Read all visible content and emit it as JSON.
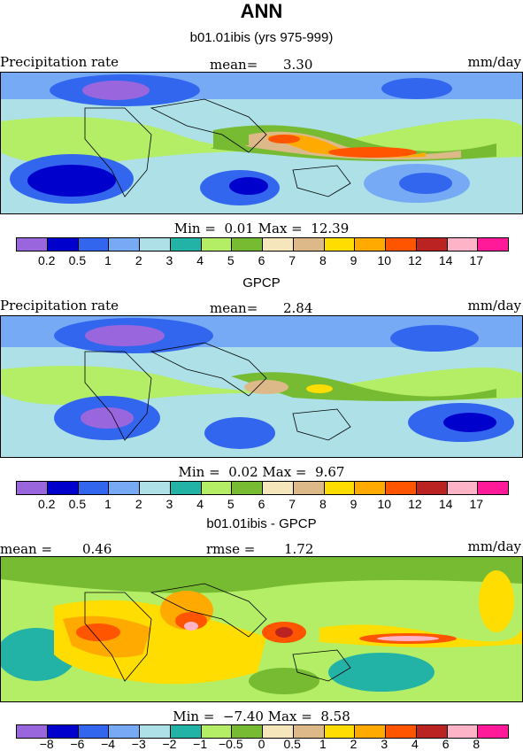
{
  "title": "ANN",
  "panels": [
    {
      "header": "b01.01ibis (yrs 975-999)",
      "left_label": "Precipitation rate",
      "mean_label": "mean=",
      "mean_value": "3.30",
      "units": "mm/day",
      "min_label": "Min =",
      "min_value": "0.01",
      "max_label": "Max =",
      "max_value": "12.39",
      "colorbar": {
        "colors": [
          "#9966dd",
          "#0000cc",
          "#3366ee",
          "#77aaf5",
          "#aee0e8",
          "#22b3a6",
          "#b3ee66",
          "#77bb33",
          "#f5e6bb",
          "#ddb888",
          "#ffdd00",
          "#ffaa00",
          "#ff5500",
          "#bb2222",
          "#ffb3c6",
          "#ff1a99"
        ],
        "ticks": [
          "0.2",
          "0.5",
          "1",
          "2",
          "3",
          "4",
          "5",
          "6",
          "7",
          "8",
          "9",
          "10",
          "12",
          "14",
          "17"
        ]
      }
    },
    {
      "header": "GPCP",
      "left_label": "Precipitation rate",
      "mean_label": "mean=",
      "mean_value": "2.84",
      "units": "mm/day",
      "min_label": "Min =",
      "min_value": "0.02",
      "max_label": "Max =",
      "max_value": "9.67",
      "colorbar": {
        "colors": [
          "#9966dd",
          "#0000cc",
          "#3366ee",
          "#77aaf5",
          "#aee0e8",
          "#22b3a6",
          "#b3ee66",
          "#77bb33",
          "#f5e6bb",
          "#ddb888",
          "#ffdd00",
          "#ffaa00",
          "#ff5500",
          "#bb2222",
          "#ffb3c6",
          "#ff1a99"
        ],
        "ticks": [
          "0.2",
          "0.5",
          "1",
          "2",
          "3",
          "4",
          "5",
          "6",
          "7",
          "8",
          "9",
          "10",
          "12",
          "14",
          "17"
        ]
      }
    },
    {
      "header": "b01.01ibis - GPCP",
      "left_label": "mean =",
      "left_value": "0.46",
      "rmse_label": "rmse =",
      "rmse_value": "1.72",
      "units": "mm/day",
      "min_label": "Min =",
      "min_value": "−7.40",
      "max_label": "Max =",
      "max_value": "8.58",
      "colorbar": {
        "colors": [
          "#9966dd",
          "#0000cc",
          "#3366ee",
          "#77aaf5",
          "#aee0e8",
          "#22b3a6",
          "#b3ee66",
          "#77bb33",
          "#f5e6bb",
          "#ddb888",
          "#ffdd00",
          "#ffaa00",
          "#ff5500",
          "#bb2222",
          "#ffb3c6",
          "#ff1a99"
        ],
        "ticks": [
          "−8",
          "−6",
          "−4",
          "−3",
          "−2",
          "−1",
          "−0.5",
          "0",
          "0.5",
          "1",
          "2",
          "3",
          "4",
          "6",
          "8"
        ]
      }
    }
  ]
}
